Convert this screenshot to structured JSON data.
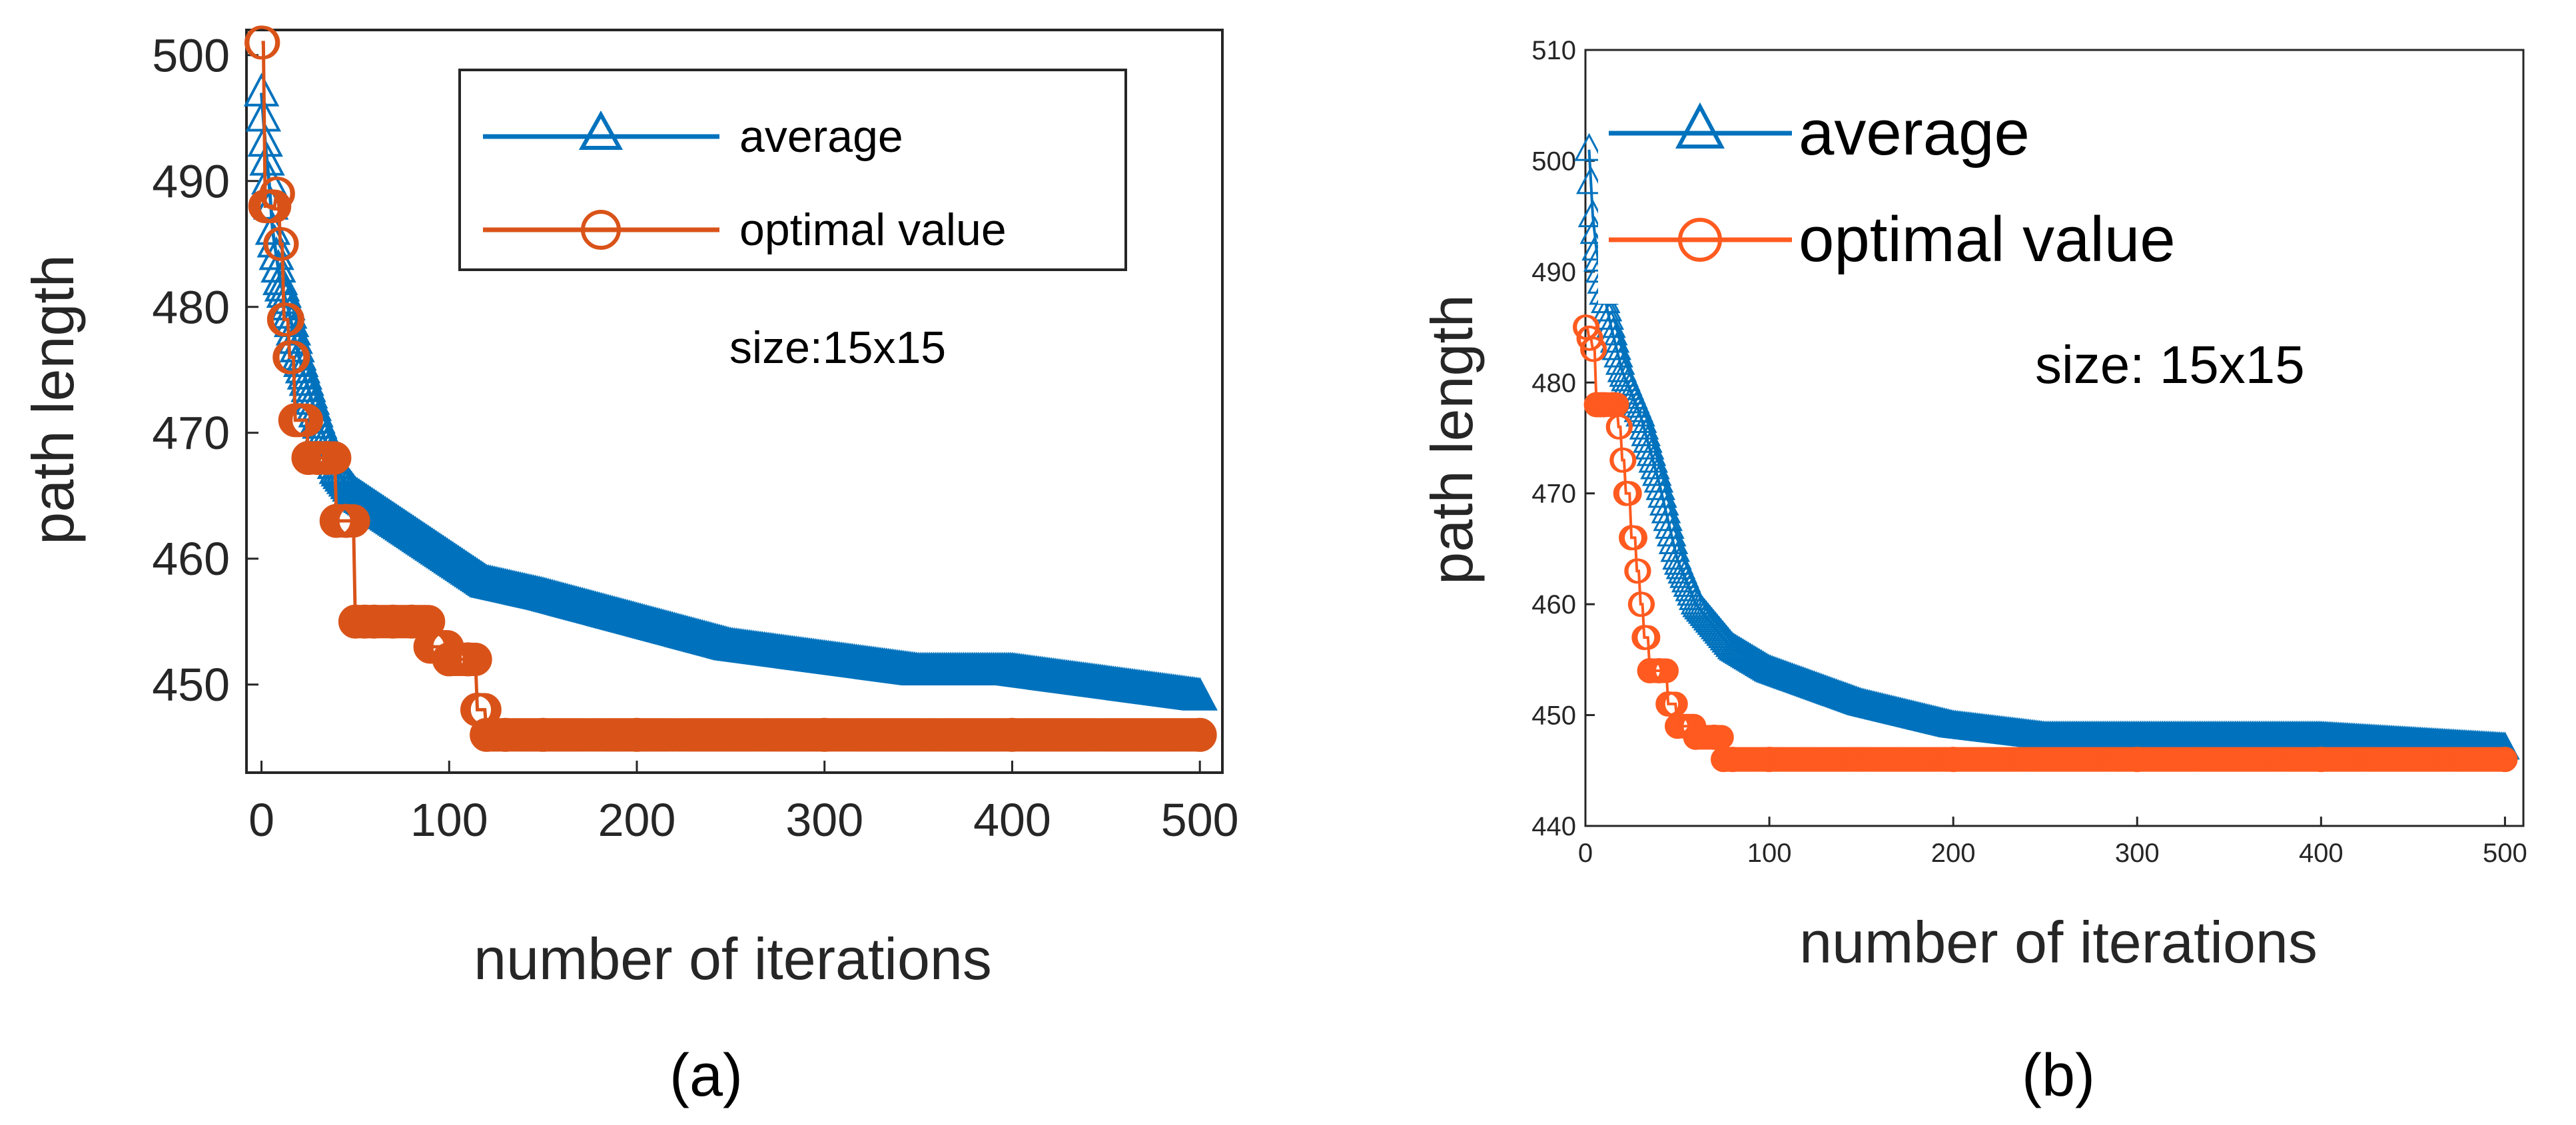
{
  "colors": {
    "average": "#0072BD",
    "optimal": "#FF5A1F",
    "optimal_a": "#D95319",
    "axis": "#262626"
  },
  "chart_data": [
    {
      "type": "line",
      "panel": "a",
      "caption": "(a)",
      "title": "",
      "xlabel": "number of iterations",
      "ylabel": "path length",
      "xlim": [
        -8,
        512
      ],
      "ylim": [
        443,
        502
      ],
      "xticks": [
        0,
        100,
        200,
        300,
        400,
        500
      ],
      "xtick_labels": [
        "0",
        "100",
        "200",
        "300",
        "400",
        "500"
      ],
      "yticks": [
        450,
        460,
        470,
        480,
        490,
        500
      ],
      "ytick_labels": [
        "450",
        "460",
        "470",
        "480",
        "490",
        "500"
      ],
      "annotation": "size:15x15",
      "legend_position": "top-right",
      "series": [
        {
          "name": "average",
          "marker": "triangle",
          "x": [
            0,
            2,
            4,
            6,
            8,
            10,
            14,
            20,
            30,
            40,
            50,
            60,
            70,
            80,
            100,
            120,
            150,
            200,
            250,
            300,
            350,
            400,
            450,
            500
          ],
          "y": [
            497,
            493,
            490,
            486,
            484,
            482,
            480,
            476,
            471,
            467,
            465,
            464,
            463,
            462,
            460,
            458,
            457,
            455,
            453,
            452,
            451,
            451,
            450,
            449
          ]
        },
        {
          "name": "optimal value",
          "marker": "circle",
          "x": [
            0,
            2,
            5,
            8,
            10,
            12,
            15,
            18,
            20,
            25,
            30,
            35,
            40,
            45,
            50,
            55,
            60,
            70,
            80,
            90,
            100,
            110,
            115,
            120,
            130,
            150,
            200,
            300,
            400,
            500
          ],
          "y": [
            501,
            488,
            488,
            489,
            485,
            479,
            476,
            471,
            471,
            468,
            468,
            468,
            463,
            463,
            455,
            455,
            455,
            455,
            455,
            453,
            452,
            452,
            448,
            446,
            446,
            446,
            446,
            446,
            446,
            446
          ]
        }
      ]
    },
    {
      "type": "line",
      "panel": "b",
      "caption": "(b)",
      "title": "",
      "xlabel": "number of iterations",
      "ylabel": "path length",
      "xlim": [
        0,
        510
      ],
      "ylim": [
        440,
        510
      ],
      "xticks": [
        0,
        100,
        200,
        300,
        400,
        500
      ],
      "xtick_labels": [
        "0",
        "100",
        "200",
        "300",
        "400",
        "500"
      ],
      "yticks": [
        440,
        450,
        460,
        470,
        480,
        490,
        500,
        510
      ],
      "ytick_labels": [
        "440",
        "450",
        "460",
        "470",
        "480",
        "490",
        "500",
        "510"
      ],
      "annotation": "size: 15x15",
      "legend_position": "top-left",
      "series": [
        {
          "name": "average",
          "marker": "triangle",
          "x": [
            2,
            4,
            6,
            8,
            10,
            14,
            20,
            30,
            40,
            50,
            60,
            80,
            100,
            150,
            200,
            250,
            300,
            400,
            500
          ],
          "y": [
            501,
            495,
            492,
            490,
            488,
            485,
            481,
            477,
            471,
            464,
            460,
            456,
            454,
            451,
            449,
            448,
            448,
            448,
            447
          ]
        },
        {
          "name": "optimal value",
          "marker": "circle",
          "x": [
            0,
            2,
            4,
            6,
            8,
            10,
            15,
            18,
            20,
            22,
            25,
            28,
            30,
            32,
            35,
            40,
            45,
            50,
            60,
            70,
            75,
            80,
            100,
            200,
            300,
            400,
            500
          ],
          "y": [
            485,
            484,
            483,
            478,
            478,
            478,
            478,
            476,
            473,
            470,
            466,
            463,
            460,
            457,
            454,
            454,
            451,
            449,
            448,
            448,
            446,
            446,
            446,
            446,
            446,
            446,
            446
          ]
        }
      ]
    }
  ]
}
